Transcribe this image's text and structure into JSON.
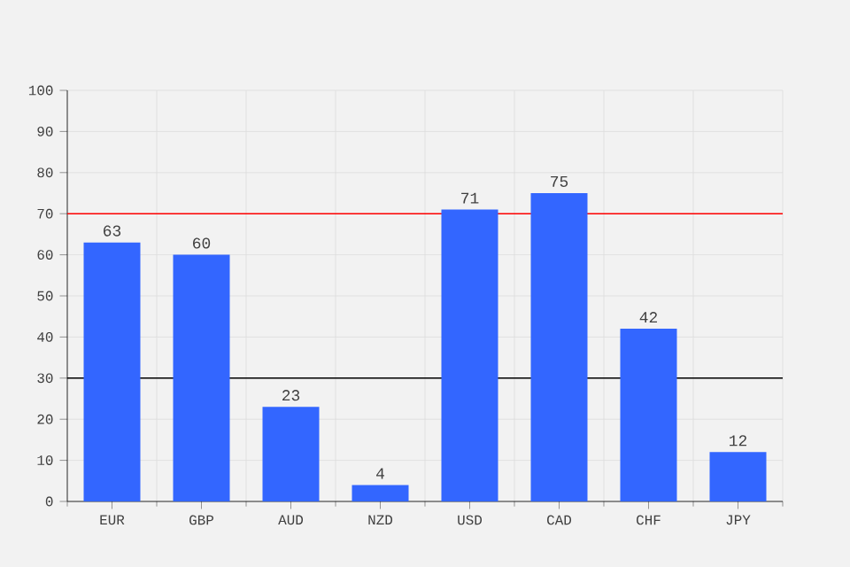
{
  "chart_data": {
    "type": "bar",
    "categories": [
      "EUR",
      "GBP",
      "AUD",
      "NZD",
      "USD",
      "CAD",
      "CHF",
      "JPY"
    ],
    "values": [
      63,
      60,
      23,
      4,
      71,
      75,
      42,
      12
    ],
    "color": "#3366ff",
    "ylim": [
      0,
      100
    ],
    "yticks": [
      0,
      10,
      20,
      30,
      40,
      50,
      60,
      70,
      80,
      90,
      100
    ],
    "grid": true,
    "data_labels": true,
    "ref_lines": [
      {
        "axis": "y",
        "value": 70,
        "color": "#ff0000"
      },
      {
        "axis": "y",
        "value": 30,
        "color": "#000000"
      }
    ]
  }
}
